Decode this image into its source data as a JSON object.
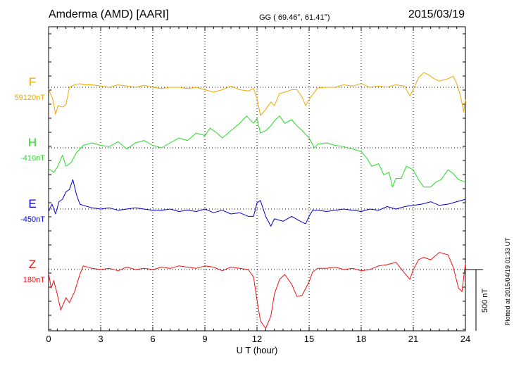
{
  "header": {
    "station": "Amderma (AMD)  [AARI]",
    "coords": "GG ( 69.46°,  61.41°)",
    "date": "2015/03/19"
  },
  "side_note": "Plotted at 2015/04/19 01:33 UT",
  "scale_bar": {
    "label": "500 nT",
    "value_nT": 500
  },
  "chart_data": {
    "type": "line",
    "xlabel": "U T (hour)",
    "xlim": [
      0,
      24
    ],
    "x_ticks": [
      0,
      3,
      6,
      9,
      12,
      15,
      18,
      21,
      24
    ],
    "x_tick_labels": [
      "0",
      "3",
      "6",
      "9",
      "12",
      "15",
      "18",
      "21",
      "24"
    ],
    "grid": true,
    "channel_spacing_nT": 500,
    "series": [
      {
        "name": "F",
        "baseline_label": "59120nT",
        "baseline_nT": 59120,
        "color": "#f0a800",
        "x": [
          0,
          0.25,
          0.4,
          0.55,
          0.7,
          0.85,
          1,
          1.2,
          1.5,
          1.8,
          2,
          2.5,
          3,
          3.5,
          4,
          4.5,
          5,
          5.5,
          6,
          6.5,
          7,
          7.5,
          8,
          8.5,
          9,
          9.5,
          10,
          10.5,
          11,
          11.5,
          11.8,
          12,
          12.2,
          12.5,
          12.8,
          13,
          13.3,
          13.6,
          14,
          14.3,
          14.6,
          14.8,
          15,
          15.2,
          15.5,
          16,
          16.5,
          17,
          17.5,
          18,
          18.5,
          19,
          19.5,
          20,
          20.5,
          20.8,
          21,
          21.3,
          21.6,
          21.9,
          22.2,
          22.5,
          23,
          23.3,
          23.5,
          23.7,
          23.9,
          24
        ],
        "v": [
          -15,
          -100,
          -220,
          -150,
          -160,
          -160,
          -140,
          0,
          20,
          30,
          20,
          20,
          10,
          0,
          20,
          10,
          0,
          15,
          0,
          -10,
          0,
          0,
          -10,
          0,
          -20,
          -40,
          -20,
          10,
          -20,
          -30,
          -10,
          -90,
          -230,
          -180,
          -120,
          -150,
          -50,
          -40,
          -20,
          -20,
          -80,
          -150,
          -100,
          -60,
          -5,
          0,
          0,
          20,
          10,
          30,
          0,
          10,
          0,
          20,
          10,
          -70,
          -20,
          80,
          120,
          100,
          70,
          50,
          70,
          90,
          30,
          -60,
          -200,
          -100
        ]
      },
      {
        "name": "H",
        "baseline_label": "-410nT",
        "baseline_nT": -410,
        "color": "#22dd22",
        "x": [
          0,
          0.3,
          0.5,
          0.8,
          1,
          1.3,
          1.6,
          2,
          2.5,
          3,
          3.5,
          4,
          4.5,
          5,
          5.5,
          6,
          6.5,
          7,
          7.5,
          8,
          8.5,
          9,
          9.3,
          9.7,
          10,
          10.5,
          11,
          11.4,
          11.8,
          12,
          12.2,
          12.5,
          12.8,
          13,
          13.3,
          13.6,
          14,
          14.3,
          14.6,
          15,
          15.3,
          15.5,
          16,
          16.5,
          17,
          17.5,
          18,
          18.3,
          18.6,
          19,
          19.3,
          19.6,
          19.8,
          20,
          20.3,
          20.6,
          21,
          21.3,
          21.6,
          22,
          22.3,
          22.6,
          23,
          23.3,
          23.6,
          24
        ],
        "v": [
          -170,
          -200,
          -160,
          -60,
          -150,
          -120,
          -40,
          20,
          40,
          20,
          10,
          50,
          -10,
          40,
          60,
          20,
          0,
          40,
          80,
          60,
          120,
          100,
          160,
          120,
          80,
          140,
          200,
          260,
          200,
          240,
          120,
          140,
          180,
          220,
          260,
          200,
          230,
          180,
          140,
          80,
          0,
          30,
          40,
          20,
          10,
          -10,
          -30,
          -80,
          -150,
          -130,
          -220,
          -200,
          -320,
          -250,
          -250,
          -150,
          -180,
          -260,
          -320,
          -320,
          -280,
          -260,
          -180,
          -210,
          -260,
          -280
        ]
      },
      {
        "name": "E",
        "baseline_label": "-450nT",
        "baseline_nT": -450,
        "color": "#0000dd",
        "x": [
          0,
          0.2,
          0.4,
          0.6,
          0.8,
          1,
          1.2,
          1.4,
          1.6,
          1.8,
          2,
          2.5,
          3,
          3.5,
          4,
          4.5,
          5,
          5.5,
          6,
          6.5,
          7,
          7.5,
          8,
          8.5,
          9,
          9.5,
          10,
          10.5,
          11,
          11.5,
          11.8,
          12,
          12.2,
          12.5,
          12.8,
          13,
          13.5,
          14,
          14.5,
          14.8,
          15,
          15.2,
          15.5,
          16,
          16.5,
          17,
          17.5,
          18,
          18.5,
          19,
          19.5,
          20,
          20.5,
          21,
          21.5,
          22,
          22.5,
          23,
          23.5,
          24
        ],
        "v": [
          -20,
          40,
          -40,
          60,
          80,
          140,
          160,
          240,
          120,
          40,
          30,
          10,
          0,
          10,
          -10,
          0,
          10,
          0,
          -10,
          -10,
          0,
          -20,
          -10,
          -20,
          0,
          -30,
          -10,
          -40,
          -30,
          -60,
          -60,
          50,
          70,
          -60,
          -140,
          -80,
          -100,
          -60,
          -100,
          -120,
          -60,
          -10,
          -10,
          -20,
          -10,
          0,
          -10,
          -20,
          0,
          -10,
          20,
          0,
          20,
          30,
          40,
          60,
          30,
          40,
          60,
          80
        ]
      },
      {
        "name": "Z",
        "baseline_label": "180nT",
        "baseline_nT": 180,
        "color": "#ee1111",
        "x": [
          0,
          0.15,
          0.3,
          0.5,
          0.7,
          1,
          1.2,
          1.5,
          1.8,
          2,
          2.5,
          3,
          3.5,
          4,
          4.5,
          5,
          5.5,
          6,
          6.5,
          7,
          7.5,
          8,
          8.5,
          9,
          9.5,
          10,
          10.5,
          11,
          11.5,
          11.8,
          12,
          12.2,
          12.5,
          12.8,
          13,
          13.3,
          13.6,
          14,
          14.3,
          14.6,
          15,
          15.2,
          15.5,
          16,
          16.5,
          17,
          17.5,
          18,
          18.5,
          19,
          19.5,
          20,
          20.5,
          20.8,
          21,
          21.3,
          21.6,
          22,
          22.5,
          23,
          23.3,
          23.6,
          23.8,
          24
        ],
        "v": [
          -30,
          -150,
          -90,
          -200,
          -330,
          -230,
          -270,
          -180,
          -40,
          30,
          10,
          0,
          10,
          -10,
          20,
          0,
          10,
          0,
          20,
          10,
          30,
          20,
          10,
          30,
          20,
          -10,
          20,
          10,
          0,
          -60,
          -250,
          -420,
          -480,
          -380,
          -200,
          -80,
          -40,
          -120,
          -220,
          -210,
          -100,
          -20,
          10,
          10,
          20,
          0,
          10,
          -10,
          0,
          30,
          40,
          60,
          -30,
          -80,
          0,
          80,
          100,
          80,
          140,
          120,
          20,
          -150,
          -180,
          50
        ]
      }
    ]
  }
}
